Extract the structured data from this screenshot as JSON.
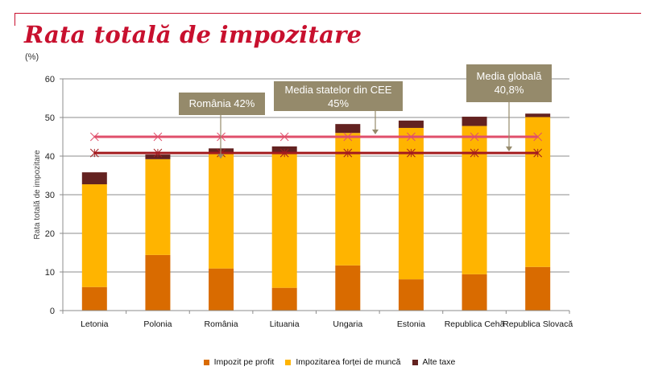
{
  "header": {
    "title": "Rata totală de impozitare",
    "unit": "(%)"
  },
  "colors": {
    "title": "#c8102e",
    "profit": "#d96b00",
    "labor": "#ffb400",
    "other": "#632220",
    "cee_line": "#e04f6b",
    "global_line": "#a31b1f",
    "callout_bg": "#958a6b",
    "grid": "#8c8c8c"
  },
  "annotations": {
    "romania": "România 42%",
    "cee_line1": "Media statelor din CEE",
    "cee_line2": "45%",
    "global_line1": "Media globală",
    "global_line2": "40,8%"
  },
  "chart_data": {
    "type": "bar",
    "stacked": true,
    "title": "Rata totală de impozitare",
    "xlabel": "",
    "ylabel": "Rata totală de impozitare",
    "unit": "(%)",
    "ylim": [
      0,
      60
    ],
    "yticks": [
      0,
      10,
      20,
      30,
      40,
      50,
      60
    ],
    "grid": true,
    "legend_position": "bottom",
    "categories": [
      "Letonia",
      "Polonia",
      "România",
      "Lituania",
      "Ungaria",
      "Estonia",
      "Republica Cehă",
      "Republica Slovacă"
    ],
    "series": [
      {
        "name": "Impozit pe profit",
        "values": [
          6.1,
          14.4,
          10.9,
          5.9,
          11.7,
          8.1,
          9.4,
          11.3
        ]
      },
      {
        "name": "Impozitarea forței de muncă",
        "values": [
          26.6,
          24.8,
          29.8,
          35.0,
          34.3,
          39.2,
          38.4,
          38.8
        ]
      },
      {
        "name": "Alte taxe",
        "values": [
          3.1,
          1.2,
          1.3,
          1.6,
          2.3,
          1.9,
          2.4,
          0.9
        ]
      }
    ],
    "reference_lines": [
      {
        "name": "Media statelor din CEE",
        "value": 45
      },
      {
        "name": "Media globală",
        "value": 40.8
      }
    ],
    "annotations": [
      {
        "text": "România 42%",
        "category": "România",
        "value": 42
      },
      {
        "text": "Media statelor din CEE 45%",
        "value": 45
      },
      {
        "text": "Media globală 40,8%",
        "value": 40.8
      }
    ]
  }
}
